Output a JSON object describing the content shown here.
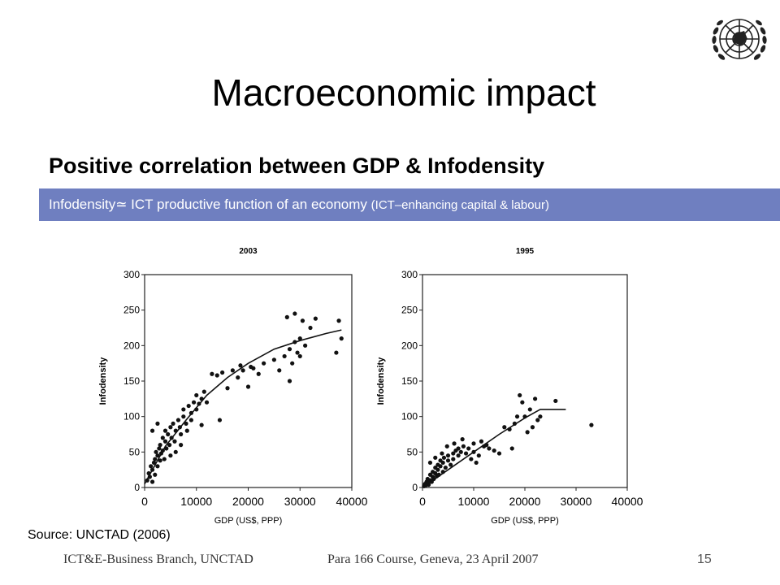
{
  "slide": {
    "title": "Macroeconomic impact",
    "subtitle": "Positive correlation between GDP & Infodensity",
    "banner_main": "Infodensity≃ ICT productive function of an economy",
    "banner_paren": "(ICT–enhancing capital & labour)",
    "source": "Source: UNCTAD (2006)",
    "footer_left": "ICT&E-Business Branch, UNCTAD",
    "footer_mid": "Para 166 Course, Geneva, 23 April 2007",
    "page_number": "15",
    "logo_icon": "un-emblem-icon"
  },
  "chart_data": [
    {
      "type": "scatter",
      "title": "2003",
      "xlabel": "GDP (US$, PPP)",
      "ylabel": "Infodensity",
      "xlim": [
        0,
        40000
      ],
      "ylim": [
        0,
        300
      ],
      "xticks": [
        "0",
        "10000",
        "20000",
        "30000",
        "40000"
      ],
      "yticks": [
        "0",
        "50",
        "100",
        "150",
        "200",
        "250",
        "300"
      ],
      "points": [
        [
          500,
          10
        ],
        [
          800,
          20
        ],
        [
          1000,
          15
        ],
        [
          1200,
          30
        ],
        [
          1500,
          8
        ],
        [
          1500,
          25
        ],
        [
          1800,
          35
        ],
        [
          2000,
          40
        ],
        [
          2000,
          18
        ],
        [
          2200,
          50
        ],
        [
          2500,
          30
        ],
        [
          2500,
          45
        ],
        [
          2800,
          55
        ],
        [
          3000,
          38
        ],
        [
          3000,
          60
        ],
        [
          3200,
          48
        ],
        [
          3500,
          52
        ],
        [
          3500,
          70
        ],
        [
          3800,
          40
        ],
        [
          4000,
          65
        ],
        [
          4000,
          80
        ],
        [
          4200,
          55
        ],
        [
          4500,
          75
        ],
        [
          4800,
          60
        ],
        [
          5000,
          85
        ],
        [
          5000,
          45
        ],
        [
          5200,
          70
        ],
        [
          5500,
          90
        ],
        [
          5800,
          65
        ],
        [
          6000,
          80
        ],
        [
          6000,
          50
        ],
        [
          6500,
          95
        ],
        [
          6800,
          85
        ],
        [
          7000,
          75
        ],
        [
          7000,
          60
        ],
        [
          7500,
          100
        ],
        [
          7500,
          110
        ],
        [
          8000,
          90
        ],
        [
          8200,
          80
        ],
        [
          8500,
          115
        ],
        [
          9000,
          105
        ],
        [
          9000,
          95
        ],
        [
          9500,
          120
        ],
        [
          10000,
          110
        ],
        [
          10000,
          130
        ],
        [
          10500,
          118
        ],
        [
          11000,
          125
        ],
        [
          11000,
          88
        ],
        [
          11500,
          135
        ],
        [
          12000,
          120
        ],
        [
          13000,
          160
        ],
        [
          14000,
          158
        ],
        [
          14500,
          95
        ],
        [
          15000,
          162
        ],
        [
          16000,
          140
        ],
        [
          17000,
          165
        ],
        [
          18000,
          155
        ],
        [
          18500,
          172
        ],
        [
          19000,
          165
        ],
        [
          20000,
          142
        ],
        [
          20500,
          170
        ],
        [
          21000,
          168
        ],
        [
          22000,
          160
        ],
        [
          23000,
          175
        ],
        [
          25000,
          180
        ],
        [
          26000,
          165
        ],
        [
          27000,
          185
        ],
        [
          27500,
          240
        ],
        [
          28000,
          150
        ],
        [
          28000,
          195
        ],
        [
          28500,
          175
        ],
        [
          29000,
          245
        ],
        [
          29000,
          205
        ],
        [
          29500,
          190
        ],
        [
          30000,
          210
        ],
        [
          30000,
          185
        ],
        [
          30500,
          235
        ],
        [
          31000,
          200
        ],
        [
          32000,
          225
        ],
        [
          33000,
          238
        ],
        [
          37000,
          190
        ],
        [
          37500,
          235
        ],
        [
          38000,
          210
        ],
        [
          1500,
          80
        ],
        [
          2500,
          90
        ]
      ],
      "fit": [
        [
          0,
          5
        ],
        [
          4000,
          58
        ],
        [
          8000,
          95
        ],
        [
          12000,
          130
        ],
        [
          16000,
          155
        ],
        [
          20000,
          175
        ],
        [
          25000,
          195
        ],
        [
          30000,
          207
        ],
        [
          35000,
          217
        ],
        [
          38000,
          222
        ]
      ]
    },
    {
      "type": "scatter",
      "title": "1995",
      "xlabel": "GDP (US$, PPP)",
      "ylabel": "Infodensity",
      "xlim": [
        0,
        40000
      ],
      "ylim": [
        0,
        300
      ],
      "xticks": [
        "0",
        "10000",
        "20000",
        "30000",
        "40000"
      ],
      "yticks": [
        "0",
        "50",
        "100",
        "150",
        "200",
        "250",
        "300"
      ],
      "points": [
        [
          300,
          2
        ],
        [
          500,
          5
        ],
        [
          600,
          3
        ],
        [
          800,
          8
        ],
        [
          1000,
          6
        ],
        [
          1000,
          12
        ],
        [
          1200,
          4
        ],
        [
          1500,
          10
        ],
        [
          1500,
          18
        ],
        [
          1800,
          8
        ],
        [
          2000,
          15
        ],
        [
          2000,
          22
        ],
        [
          2200,
          12
        ],
        [
          2500,
          20
        ],
        [
          2500,
          28
        ],
        [
          2800,
          16
        ],
        [
          3000,
          25
        ],
        [
          3000,
          32
        ],
        [
          3200,
          18
        ],
        [
          3500,
          30
        ],
        [
          3500,
          38
        ],
        [
          4000,
          22
        ],
        [
          4000,
          35
        ],
        [
          4200,
          42
        ],
        [
          4500,
          28
        ],
        [
          5000,
          38
        ],
        [
          5000,
          45
        ],
        [
          5500,
          32
        ],
        [
          6000,
          48
        ],
        [
          6000,
          40
        ],
        [
          6500,
          52
        ],
        [
          7000,
          45
        ],
        [
          7000,
          55
        ],
        [
          7500,
          50
        ],
        [
          8000,
          58
        ],
        [
          8500,
          48
        ],
        [
          9000,
          55
        ],
        [
          9500,
          40
        ],
        [
          10000,
          62
        ],
        [
          10000,
          50
        ],
        [
          11000,
          45
        ],
        [
          11500,
          65
        ],
        [
          12000,
          58
        ],
        [
          12500,
          60
        ],
        [
          13000,
          55
        ],
        [
          14000,
          52
        ],
        [
          15000,
          48
        ],
        [
          16000,
          85
        ],
        [
          17000,
          82
        ],
        [
          17500,
          55
        ],
        [
          18000,
          90
        ],
        [
          18500,
          100
        ],
        [
          19000,
          130
        ],
        [
          19500,
          120
        ],
        [
          20000,
          100
        ],
        [
          20500,
          78
        ],
        [
          21000,
          110
        ],
        [
          21500,
          85
        ],
        [
          22000,
          125
        ],
        [
          22500,
          95
        ],
        [
          23000,
          100
        ],
        [
          26000,
          122
        ],
        [
          33000,
          88
        ],
        [
          1500,
          35
        ],
        [
          2500,
          42
        ],
        [
          3800,
          48
        ],
        [
          4800,
          58
        ],
        [
          6200,
          62
        ],
        [
          7800,
          68
        ],
        [
          10500,
          35
        ]
      ],
      "fit": [
        [
          0,
          0
        ],
        [
          5000,
          25
        ],
        [
          10000,
          50
        ],
        [
          15000,
          75
        ],
        [
          20000,
          98
        ],
        [
          23000,
          110
        ],
        [
          28000,
          110
        ]
      ]
    }
  ]
}
